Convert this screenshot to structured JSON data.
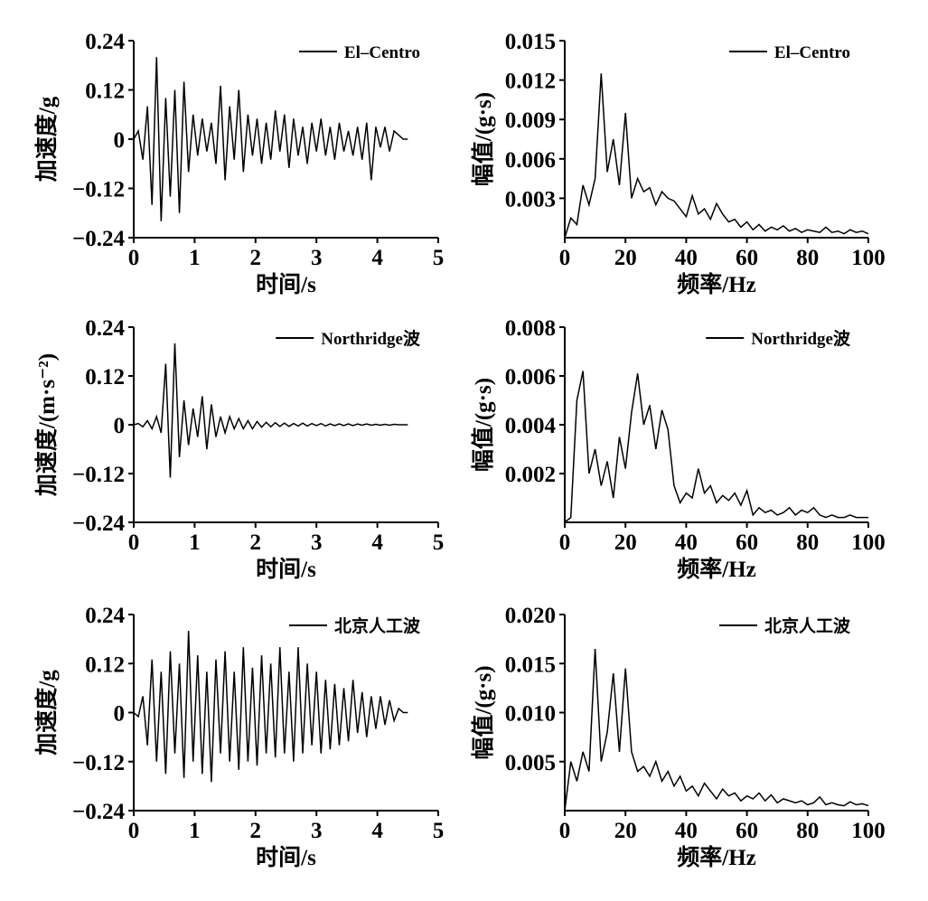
{
  "chart_data": [
    {
      "type": "line",
      "ylabel": "加速度/g",
      "xlabel": "时间/s",
      "legend": "upper right",
      "xlim": [
        0,
        5
      ],
      "xticks": [
        0,
        1,
        2,
        3,
        4,
        5
      ],
      "ylim": [
        -0.24,
        0.24
      ],
      "yticks": [
        {
          "value": -0.24,
          "label": "−0.24"
        },
        {
          "value": -0.12,
          "label": "−0.12"
        },
        0,
        0.12,
        0.24
      ],
      "x": [
        0,
        0.075,
        0.15,
        0.225,
        0.3,
        0.375,
        0.45,
        0.525,
        0.6,
        0.675,
        0.75,
        0.825,
        0.9,
        0.975,
        1.05,
        1.125,
        1.2,
        1.275,
        1.35,
        1.425,
        1.5,
        1.575,
        1.65,
        1.725,
        1.8,
        1.875,
        1.95,
        2.025,
        2.1,
        2.175,
        2.25,
        2.325,
        2.4,
        2.475,
        2.55,
        2.625,
        2.7,
        2.775,
        2.85,
        2.925,
        3,
        3.075,
        3.15,
        3.225,
        3.3,
        3.375,
        3.45,
        3.525,
        3.6,
        3.675,
        3.75,
        3.825,
        3.9,
        3.975,
        4.05,
        4.125,
        4.2,
        4.275,
        4.35,
        4.425,
        4.5
      ],
      "series": [
        {
          "name": "El–Centro",
          "color": "#000000",
          "values": [
            0,
            0.02,
            -0.05,
            0.08,
            -0.16,
            0.2,
            -0.2,
            0.1,
            -0.14,
            0.12,
            -0.18,
            0.14,
            -0.08,
            0.06,
            -0.04,
            0.05,
            -0.03,
            0.04,
            -0.06,
            0.13,
            -0.1,
            0.08,
            -0.05,
            0.12,
            -0.08,
            0.06,
            -0.04,
            0.05,
            -0.06,
            0.04,
            -0.05,
            0.07,
            -0.03,
            0.06,
            -0.07,
            0.05,
            -0.04,
            0.03,
            -0.06,
            0.04,
            -0.03,
            0.05,
            -0.04,
            0.03,
            -0.05,
            0.04,
            -0.03,
            0.02,
            -0.04,
            0.03,
            -0.05,
            0.04,
            -0.1,
            0.03,
            -0.02,
            0.03,
            -0.03,
            0.02,
            0.01,
            0,
            0
          ]
        }
      ]
    },
    {
      "type": "line",
      "ylabel": "幅值/(g·s)",
      "xlabel": "频率/Hz",
      "legend": "upper right",
      "xlim": [
        0,
        100
      ],
      "xticks": [
        0,
        20,
        40,
        60,
        80,
        100
      ],
      "ylim": [
        0,
        0.015
      ],
      "yticks": [
        0.003,
        0.006,
        0.009,
        0.012,
        0.015
      ],
      "x": [
        0,
        2,
        4,
        6,
        8,
        10,
        12,
        14,
        16,
        18,
        20,
        22,
        24,
        26,
        28,
        30,
        32,
        34,
        36,
        38,
        40,
        42,
        44,
        46,
        48,
        50,
        52,
        54,
        56,
        58,
        60,
        62,
        64,
        66,
        68,
        70,
        72,
        74,
        76,
        78,
        80,
        82,
        84,
        86,
        88,
        90,
        92,
        94,
        96,
        98,
        100
      ],
      "series": [
        {
          "name": "El–Centro",
          "color": "#000000",
          "values": [
            0,
            0.0015,
            0.001,
            0.004,
            0.0025,
            0.0045,
            0.0125,
            0.005,
            0.0075,
            0.004,
            0.0095,
            0.003,
            0.0045,
            0.0035,
            0.0038,
            0.0025,
            0.0035,
            0.003,
            0.0028,
            0.0022,
            0.0016,
            0.0032,
            0.0018,
            0.0022,
            0.0014,
            0.0026,
            0.0018,
            0.0012,
            0.0014,
            0.0008,
            0.0012,
            0.0006,
            0.001,
            0.0005,
            0.0008,
            0.0006,
            0.0009,
            0.0005,
            0.0007,
            0.0004,
            0.0006,
            0.0005,
            0.0004,
            0.0008,
            0.0004,
            0.0005,
            0.0003,
            0.0006,
            0.0004,
            0.0005,
            0.0003
          ]
        }
      ]
    },
    {
      "type": "line",
      "ylabel": "加速度/(m·s⁻²)",
      "xlabel": "时间/s",
      "legend": "upper right",
      "xlim": [
        0,
        5
      ],
      "xticks": [
        0,
        1,
        2,
        3,
        4,
        5
      ],
      "ylim": [
        -0.24,
        0.24
      ],
      "yticks": [
        {
          "value": -0.24,
          "label": "−0.24"
        },
        {
          "value": -0.12,
          "label": "−0.12"
        },
        0,
        0.12,
        0.24
      ],
      "x": [
        0,
        0.075,
        0.15,
        0.225,
        0.3,
        0.375,
        0.45,
        0.525,
        0.6,
        0.675,
        0.75,
        0.825,
        0.9,
        0.975,
        1.05,
        1.125,
        1.2,
        1.275,
        1.35,
        1.425,
        1.5,
        1.575,
        1.65,
        1.725,
        1.8,
        1.875,
        1.95,
        2.025,
        2.1,
        2.175,
        2.25,
        2.325,
        2.4,
        2.475,
        2.55,
        2.625,
        2.7,
        2.775,
        2.85,
        2.925,
        3,
        3.075,
        3.15,
        3.225,
        3.3,
        3.375,
        3.45,
        3.525,
        3.6,
        3.675,
        3.75,
        3.825,
        3.9,
        3.975,
        4.05,
        4.125,
        4.2,
        4.275,
        4.35,
        4.425,
        4.5
      ],
      "series": [
        {
          "name": "Northridge波",
          "color": "#000000",
          "values": [
            0,
            0.003,
            -0.005,
            0.01,
            -0.01,
            0.02,
            -0.02,
            0.15,
            -0.13,
            0.2,
            -0.08,
            0.06,
            -0.05,
            0.04,
            -0.03,
            0.07,
            -0.06,
            0.05,
            -0.03,
            0.02,
            -0.02,
            0.02,
            -0.01,
            0.015,
            -0.01,
            0.01,
            -0.01,
            0.008,
            -0.006,
            0.006,
            -0.005,
            0.005,
            -0.004,
            0.004,
            -0.004,
            0.003,
            -0.003,
            0.004,
            -0.003,
            0.003,
            -0.002,
            0.003,
            -0.003,
            0.002,
            -0.002,
            0.002,
            -0.002,
            0.002,
            -0.002,
            0.002,
            -0.001,
            0.002,
            -0.001,
            0.001,
            -0.001,
            0.001,
            -0.001,
            0.001,
            0,
            0,
            0
          ]
        }
      ]
    },
    {
      "type": "line",
      "ylabel": "幅值/(g·s)",
      "xlabel": "频率/Hz",
      "legend": "upper right",
      "xlim": [
        0,
        100
      ],
      "xticks": [
        0,
        20,
        40,
        60,
        80,
        100
      ],
      "ylim": [
        0,
        0.008
      ],
      "yticks": [
        0.002,
        0.004,
        0.006,
        0.008
      ],
      "x": [
        0,
        2,
        4,
        6,
        8,
        10,
        12,
        14,
        16,
        18,
        20,
        22,
        24,
        26,
        28,
        30,
        32,
        34,
        36,
        38,
        40,
        42,
        44,
        46,
        48,
        50,
        52,
        54,
        56,
        58,
        60,
        62,
        64,
        66,
        68,
        70,
        72,
        74,
        76,
        78,
        80,
        82,
        84,
        86,
        88,
        90,
        92,
        94,
        96,
        98,
        100
      ],
      "series": [
        {
          "name": "Northridge波",
          "color": "#000000",
          "values": [
            0,
            0.0002,
            0.005,
            0.0062,
            0.002,
            0.003,
            0.0015,
            0.0025,
            0.001,
            0.0035,
            0.0022,
            0.0045,
            0.0061,
            0.004,
            0.0048,
            0.003,
            0.0046,
            0.0038,
            0.0015,
            0.0008,
            0.0012,
            0.001,
            0.0022,
            0.0012,
            0.0015,
            0.0008,
            0.0011,
            0.0009,
            0.0012,
            0.0007,
            0.0013,
            0.0003,
            0.0006,
            0.0004,
            0.0005,
            0.0003,
            0.0004,
            0.0006,
            0.0003,
            0.0005,
            0.0004,
            0.0006,
            0.0003,
            0.0002,
            0.0003,
            0.0002,
            0.0002,
            0.0003,
            0.0002,
            0.0002,
            0.0002
          ]
        }
      ]
    },
    {
      "type": "line",
      "ylabel": "加速度/g",
      "xlabel": "时间/s",
      "legend": "upper right",
      "xlim": [
        0,
        5
      ],
      "xticks": [
        0,
        1,
        2,
        3,
        4,
        5
      ],
      "ylim": [
        -0.24,
        0.24
      ],
      "yticks": [
        {
          "value": -0.24,
          "label": "−0.24"
        },
        {
          "value": -0.12,
          "label": "−0.12"
        },
        0,
        0.12,
        0.24
      ],
      "x": [
        0,
        0.075,
        0.15,
        0.225,
        0.3,
        0.375,
        0.45,
        0.525,
        0.6,
        0.675,
        0.75,
        0.825,
        0.9,
        0.975,
        1.05,
        1.125,
        1.2,
        1.275,
        1.35,
        1.425,
        1.5,
        1.575,
        1.65,
        1.725,
        1.8,
        1.875,
        1.95,
        2.025,
        2.1,
        2.175,
        2.25,
        2.325,
        2.4,
        2.475,
        2.55,
        2.625,
        2.7,
        2.775,
        2.85,
        2.925,
        3,
        3.075,
        3.15,
        3.225,
        3.3,
        3.375,
        3.45,
        3.525,
        3.6,
        3.675,
        3.75,
        3.825,
        3.9,
        3.975,
        4.05,
        4.125,
        4.2,
        4.275,
        4.35,
        4.425,
        4.5
      ],
      "series": [
        {
          "name": "北京人工波",
          "color": "#000000",
          "values": [
            0,
            -0.01,
            0.04,
            -0.08,
            0.13,
            -0.12,
            0.1,
            -0.15,
            0.15,
            -0.1,
            0.12,
            -0.16,
            0.2,
            -0.12,
            0.14,
            -0.15,
            0.1,
            -0.17,
            0.13,
            -0.1,
            0.15,
            -0.12,
            0.1,
            -0.14,
            0.16,
            -0.12,
            0.11,
            -0.13,
            0.14,
            -0.1,
            0.12,
            -0.11,
            0.16,
            -0.1,
            0.1,
            -0.12,
            0.16,
            -0.1,
            0.12,
            -0.08,
            0.1,
            -0.1,
            0.08,
            -0.09,
            0.07,
            -0.08,
            0.06,
            -0.07,
            0.08,
            -0.05,
            0.05,
            -0.06,
            0.04,
            -0.04,
            0.04,
            -0.03,
            0.03,
            -0.02,
            0.01,
            0,
            0
          ]
        }
      ]
    },
    {
      "type": "line",
      "ylabel": "幅值/(g·s)",
      "xlabel": "频率/Hz",
      "legend": "upper right",
      "xlim": [
        0,
        100
      ],
      "xticks": [
        0,
        20,
        40,
        60,
        80,
        100
      ],
      "ylim": [
        0,
        0.02
      ],
      "yticks": [
        0.005,
        {
          "value": 0.01,
          "label": "0.010"
        },
        0.015,
        {
          "value": 0.02,
          "label": "0.020"
        }
      ],
      "x": [
        0,
        2,
        4,
        6,
        8,
        10,
        12,
        14,
        16,
        18,
        20,
        22,
        24,
        26,
        28,
        30,
        32,
        34,
        36,
        38,
        40,
        42,
        44,
        46,
        48,
        50,
        52,
        54,
        56,
        58,
        60,
        62,
        64,
        66,
        68,
        70,
        72,
        74,
        76,
        78,
        80,
        82,
        84,
        86,
        88,
        90,
        92,
        94,
        96,
        98,
        100
      ],
      "series": [
        {
          "name": "北京人工波",
          "color": "#000000",
          "values": [
            0,
            0.005,
            0.003,
            0.006,
            0.004,
            0.0165,
            0.005,
            0.008,
            0.014,
            0.006,
            0.0145,
            0.006,
            0.004,
            0.0045,
            0.0035,
            0.005,
            0.003,
            0.004,
            0.0025,
            0.0035,
            0.002,
            0.0025,
            0.0015,
            0.0028,
            0.002,
            0.0012,
            0.0022,
            0.0015,
            0.0018,
            0.001,
            0.0015,
            0.0012,
            0.0018,
            0.001,
            0.0016,
            0.0008,
            0.0012,
            0.001,
            0.0008,
            0.001,
            0.0006,
            0.0008,
            0.0014,
            0.0006,
            0.0008,
            0.0006,
            0.0005,
            0.0009,
            0.0006,
            0.0007,
            0.0005
          ]
        }
      ]
    }
  ]
}
